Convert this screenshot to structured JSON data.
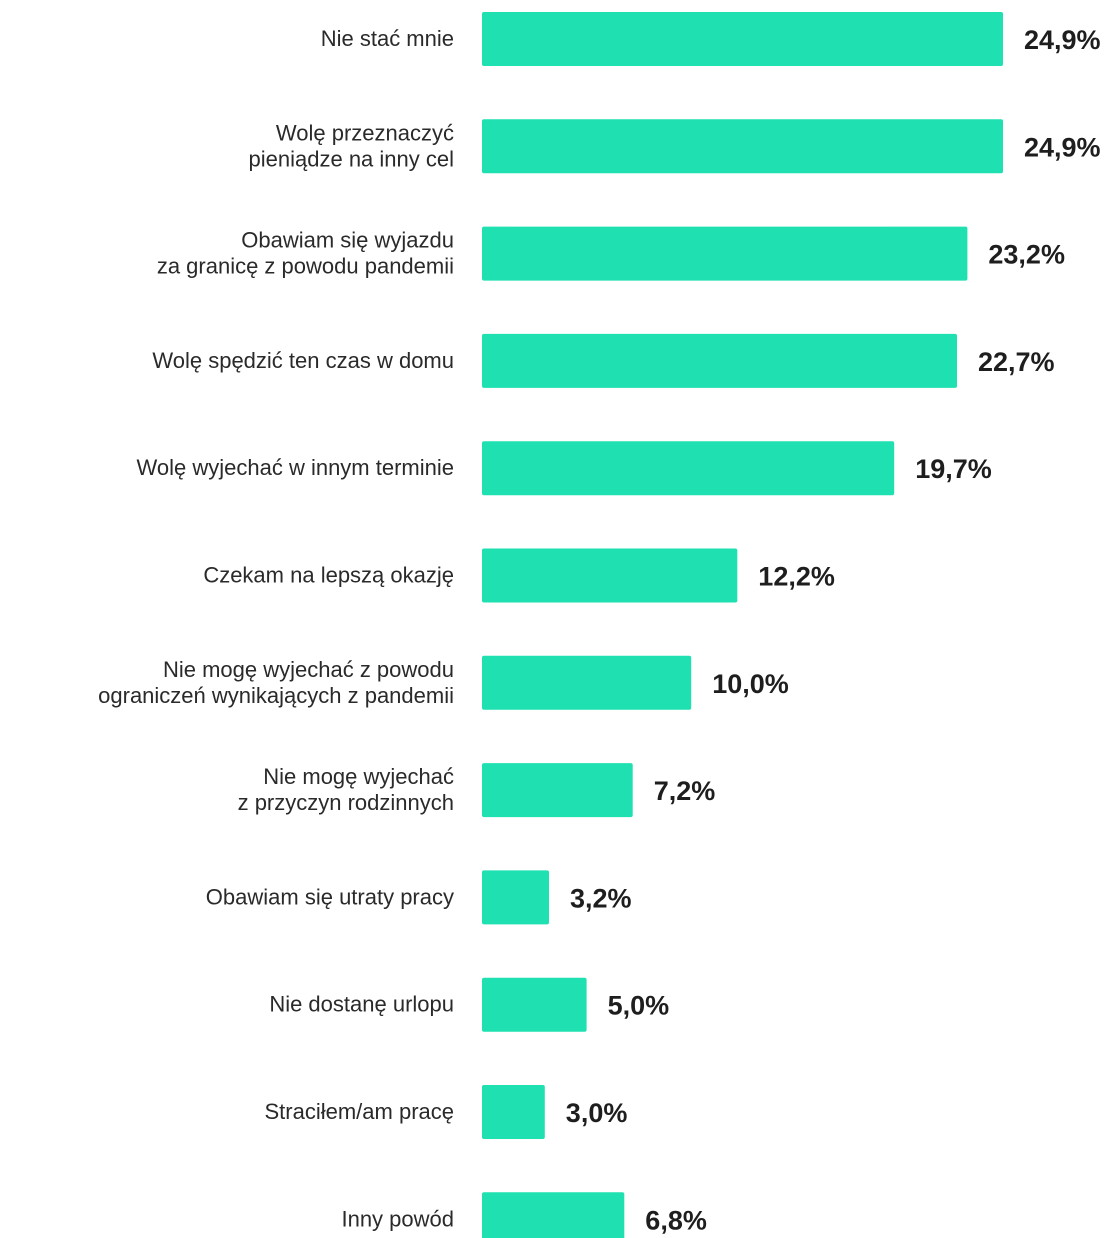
{
  "chart_data": {
    "type": "bar",
    "orientation": "horizontal",
    "bar_color": "#1fe0b0",
    "value_format": "percent_comma_decimal",
    "xlim": [
      0,
      24.9
    ],
    "grid": false,
    "legend": "none",
    "categories": [
      [
        "Nie stać mnie"
      ],
      [
        "Wolę przeznaczyć",
        "pieniądze na inny cel"
      ],
      [
        "Obawiam się wyjazdu",
        "za granicę z powodu pandemii"
      ],
      [
        "Wolę spędzić ten czas w domu"
      ],
      [
        "Wolę wyjechać w innym terminie"
      ],
      [
        "Czekam na lepszą okazję"
      ],
      [
        "Nie mogę wyjechać z powodu",
        "ograniczeń wynikających z pandemii"
      ],
      [
        "Nie mogę wyjechać",
        "z przyczyn rodzinnych"
      ],
      [
        "Obawiam się utraty pracy"
      ],
      [
        "Nie dostanę urlopu"
      ],
      [
        "Straciłem/am pracę"
      ],
      [
        "Inny powód"
      ]
    ],
    "values": [
      24.9,
      24.9,
      23.2,
      22.7,
      19.7,
      12.2,
      10.0,
      7.2,
      3.2,
      5.0,
      3.0,
      6.8
    ],
    "value_labels": [
      "24,9%",
      "24,9%",
      "23,2%",
      "22,7%",
      "19,7%",
      "12,2%",
      "10,0%",
      "7,2%",
      "3,2%",
      "5,0%",
      "3,0%",
      "6,8%"
    ]
  }
}
